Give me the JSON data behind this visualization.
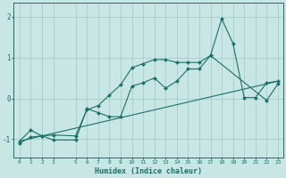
{
  "xlabel": "Humidex (Indice chaleur)",
  "bg_color": "#c8e6e4",
  "grid_color": "#a0cac8",
  "line_color": "#1a7068",
  "xlim": [
    -0.5,
    23.5
  ],
  "ylim": [
    -1.45,
    2.35
  ],
  "yticks": [
    -1,
    0,
    1,
    2
  ],
  "xtick_vals": [
    0,
    1,
    2,
    3,
    5,
    6,
    7,
    8,
    9,
    10,
    11,
    12,
    13,
    14,
    15,
    16,
    17,
    18,
    19,
    20,
    21,
    22,
    23
  ],
  "line1_x": [
    0,
    1,
    2,
    3,
    5,
    6,
    7,
    8,
    9,
    10,
    11,
    12,
    13,
    14,
    15,
    16,
    17,
    18,
    19,
    20,
    21,
    22,
    23
  ],
  "line1_y": [
    -1.05,
    -0.78,
    -0.92,
    -0.9,
    -0.92,
    -0.28,
    -0.18,
    0.08,
    0.33,
    0.75,
    0.85,
    0.95,
    0.95,
    0.88,
    0.88,
    0.88,
    1.05,
    1.95,
    1.35,
    0.02,
    0.02,
    0.38,
    0.42
  ],
  "line2_x": [
    0,
    1,
    2,
    3,
    5,
    6,
    7,
    8,
    9,
    10,
    11,
    12,
    13,
    14,
    15,
    16,
    17,
    22,
    23
  ],
  "line2_y": [
    -1.1,
    -0.95,
    -0.92,
    -1.02,
    -1.02,
    -0.25,
    -0.35,
    -0.45,
    -0.45,
    0.3,
    0.38,
    0.5,
    0.25,
    0.42,
    0.72,
    0.72,
    1.05,
    -0.05,
    0.35
  ],
  "line3_x": [
    0,
    23
  ],
  "line3_y": [
    -1.05,
    0.42
  ]
}
